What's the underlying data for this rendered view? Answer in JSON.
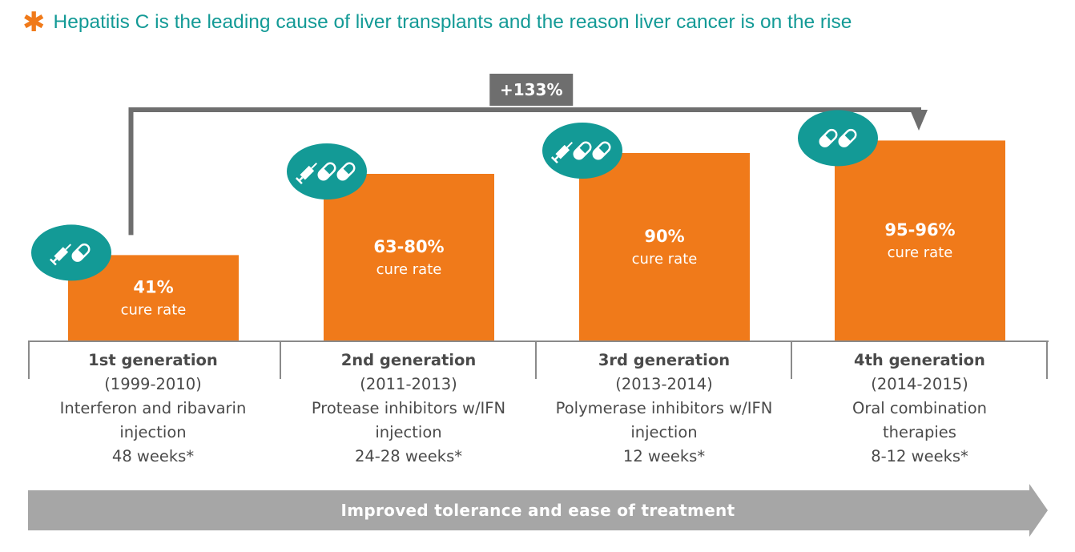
{
  "header": {
    "star_symbol": "✱",
    "title": "Hepatitis C is the leading cause of liver transplants and the reason liver cancer is on the rise"
  },
  "colors": {
    "accent_orange": "#f07a1a",
    "teal": "#139a96",
    "gray": "#6e6e6e",
    "light_gray": "#a6a6a6"
  },
  "chart_data": {
    "type": "bar",
    "categories": [
      "1st generation",
      "2nd generation",
      "3rd generation",
      "4th generation"
    ],
    "values": [
      41,
      80,
      90,
      96
    ],
    "value_labels": [
      "41%",
      "63-80%",
      "90%",
      "95-96%"
    ],
    "value_sublabel": "cure rate",
    "ylim": [
      0,
      100
    ],
    "icons": [
      {
        "name": "syringe-pill-icon",
        "pills": 1
      },
      {
        "name": "syringe-two-pills-icon",
        "pills": 2
      },
      {
        "name": "syringe-two-pills-icon",
        "pills": 2
      },
      {
        "name": "two-pills-icon",
        "pills": 2,
        "syringe": false
      }
    ],
    "annotation": "+133%"
  },
  "generations": [
    {
      "title": "1st generation",
      "years": "(1999-2010)",
      "treatment_line1": "Interferon and ribavarin",
      "treatment_line2": "injection",
      "duration": "48 weeks*"
    },
    {
      "title": "2nd generation",
      "years": "(2011-2013)",
      "treatment_line1": "Protease inhibitors w/IFN",
      "treatment_line2": "injection",
      "duration": "24-28 weeks*"
    },
    {
      "title": "3rd generation",
      "years": "(2013-2014)",
      "treatment_line1": "Polymerase inhibitors w/IFN",
      "treatment_line2": "injection",
      "duration": "12 weeks*"
    },
    {
      "title": "4th generation",
      "years": "(2014-2015)",
      "treatment_line1": "Oral combination",
      "treatment_line2": "therapies",
      "duration": "8-12 weeks*"
    }
  ],
  "footer": {
    "arrow_label": "Improved tolerance and ease of treatment"
  }
}
